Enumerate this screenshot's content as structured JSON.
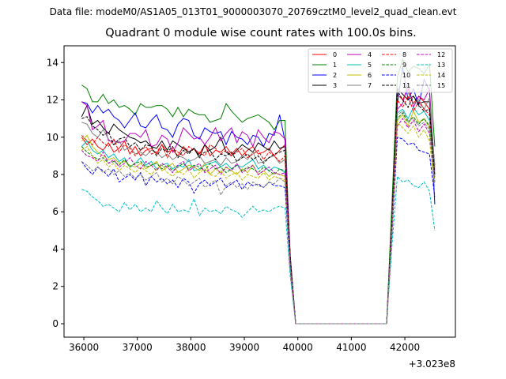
{
  "chart_data": {
    "type": "line",
    "suptitle": "Data file: modeM0/AS1A05_013T01_9000003070_20769cztM0_level2_quad_clean.evt",
    "title": "Quadrant 0 module wise count rates with 100.0s bins.",
    "xlabel": "",
    "ylabel": "",
    "x_offset_text": "+3.023e8",
    "xlim": [
      35630,
      42945
    ],
    "ylim": [
      -0.72,
      14.9
    ],
    "xticks": [
      36000,
      37000,
      38000,
      39000,
      40000,
      41000,
      42000
    ],
    "xtick_labels": [
      "36000",
      "37000",
      "38000",
      "39000",
      "40000",
      "41000",
      "42000"
    ],
    "yticks": [
      0,
      2,
      4,
      6,
      8,
      10,
      12,
      14
    ],
    "ytick_labels": [
      "0",
      "2",
      "4",
      "6",
      "8",
      "10",
      "12",
      "14"
    ],
    "grid": false,
    "legend_placement": "top-right",
    "legend_columns": 4,
    "x": [
      35960,
      36060,
      36160,
      36260,
      36360,
      36460,
      36560,
      36660,
      36760,
      36860,
      36960,
      37060,
      37160,
      37260,
      37360,
      37460,
      37560,
      37660,
      37760,
      37860,
      37960,
      38060,
      38160,
      38260,
      38360,
      38460,
      38560,
      38660,
      38760,
      38860,
      38960,
      39060,
      39160,
      39260,
      39360,
      39460,
      39560,
      39660,
      39760,
      39860,
      39960,
      40060,
      40160,
      40260,
      40360,
      40460,
      40560,
      40660,
      40760,
      40860,
      40960,
      41060,
      41160,
      41260,
      41360,
      41460,
      41560,
      41660,
      41760,
      41860,
      41960,
      42060,
      42160,
      42260,
      42360,
      42460,
      42560
    ],
    "series": [
      {
        "name": "0",
        "color": "#ff0000",
        "style": "solid",
        "values": [
          10.0,
          9.6,
          9.9,
          9.5,
          9.3,
          9.7,
          9.2,
          9.4,
          9.8,
          9.1,
          9.5,
          9.0,
          9.3,
          9.4,
          9.1,
          9.6,
          9.2,
          9.3,
          9.0,
          9.5,
          9.2,
          9.4,
          9.1,
          9.6,
          9.0,
          9.3,
          9.2,
          9.5,
          9.1,
          9.4,
          9.0,
          9.3,
          9.5,
          9.1,
          9.2,
          9.4,
          9.0,
          9.3,
          9.6,
          3.2,
          0,
          0,
          0,
          0,
          0,
          0,
          0,
          0,
          0,
          0,
          0,
          0,
          0,
          0,
          0,
          0,
          0,
          0,
          5.5,
          12.3,
          12.0,
          12.6,
          11.8,
          12.2,
          11.9,
          11.5,
          8.5
        ]
      },
      {
        "name": "1",
        "color": "#008000",
        "style": "solid",
        "values": [
          12.8,
          12.6,
          11.9,
          11.9,
          12.3,
          11.8,
          12.0,
          11.6,
          11.7,
          11.5,
          11.2,
          11.8,
          11.6,
          11.6,
          11.7,
          11.7,
          11.5,
          11.1,
          11.6,
          11.1,
          11.5,
          11.3,
          11.2,
          11.2,
          10.8,
          10.9,
          11.0,
          11.8,
          11.4,
          11.1,
          10.8,
          11.0,
          11.1,
          11.2,
          11.0,
          10.8,
          10.4,
          10.9,
          10.9,
          3.0,
          0,
          0,
          0,
          0,
          0,
          0,
          0,
          0,
          0,
          0,
          0,
          0,
          0,
          0,
          0,
          0,
          0,
          0,
          6.5,
          13.2,
          14.2,
          13.5,
          13.8,
          13.7,
          13.4,
          13.9,
          9.5
        ]
      },
      {
        "name": "2",
        "color": "#0000ff",
        "style": "solid",
        "values": [
          11.9,
          11.8,
          11.3,
          11.7,
          11.3,
          11.5,
          11.1,
          10.9,
          10.5,
          10.9,
          11.3,
          10.6,
          10.5,
          10.9,
          11.2,
          10.5,
          10.4,
          10.0,
          10.7,
          11.0,
          10.9,
          10.1,
          9.9,
          10.5,
          10.3,
          10.2,
          10.3,
          9.6,
          10.3,
          10.0,
          9.9,
          9.6,
          10.1,
          10.0,
          9.5,
          10.2,
          10.1,
          11.2,
          9.8,
          3.4,
          0,
          0,
          0,
          0,
          0,
          0,
          0,
          0,
          0,
          0,
          0,
          0,
          0,
          0,
          0,
          0,
          0,
          0,
          5.0,
          11.8,
          13.8,
          12.0,
          12.6,
          11.7,
          13.1,
          12.5,
          6.4
        ]
      },
      {
        "name": "3",
        "color": "#000000",
        "style": "solid",
        "values": [
          11.1,
          11.7,
          10.7,
          10.9,
          10.5,
          10.2,
          10.7,
          10.4,
          10.2,
          10.0,
          9.9,
          9.7,
          9.8,
          9.5,
          9.4,
          9.8,
          9.3,
          9.8,
          9.6,
          9.4,
          9.2,
          9.4,
          8.9,
          9.6,
          9.3,
          9.5,
          10.0,
          9.2,
          9.0,
          9.3,
          9.6,
          9.4,
          9.2,
          9.7,
          9.5,
          9.3,
          9.8,
          9.4,
          9.5,
          3.6,
          0,
          0,
          0,
          0,
          0,
          0,
          0,
          0,
          0,
          0,
          0,
          0,
          0,
          0,
          0,
          0,
          0,
          0,
          5.8,
          12.6,
          12.3,
          12.0,
          12.2,
          11.8,
          11.9,
          11.9,
          8.0
        ]
      },
      {
        "name": "4",
        "color": "#bf00bf",
        "style": "solid",
        "values": [
          11.9,
          11.7,
          10.4,
          10.6,
          10.9,
          9.8,
          9.8,
          9.7,
          9.8,
          10.2,
          10.2,
          10.0,
          10.4,
          9.5,
          9.6,
          10.1,
          9.9,
          9.2,
          9.7,
          10.5,
          10.2,
          9.9,
          10.0,
          9.6,
          10.0,
          10.5,
          9.8,
          10.2,
          10.5,
          9.7,
          10.3,
          10.1,
          9.5,
          10.4,
          10.0,
          9.7,
          10.3,
          10.2,
          9.9,
          3.5,
          0,
          0,
          0,
          0,
          0,
          0,
          0,
          0,
          0,
          0,
          0,
          0,
          0,
          0,
          0,
          0,
          0,
          0,
          5.3,
          11.5,
          11.8,
          12.9,
          11.6,
          12.2,
          12.0,
          12.6,
          8.2
        ]
      },
      {
        "name": "5",
        "color": "#00bfbf",
        "style": "solid",
        "values": [
          9.5,
          9.8,
          9.3,
          9.1,
          9.3,
          8.9,
          9.1,
          8.7,
          8.9,
          8.4,
          8.6,
          8.9,
          8.5,
          8.7,
          8.3,
          8.5,
          8.6,
          8.3,
          8.5,
          8.4,
          8.8,
          8.2,
          8.3,
          8.5,
          8.6,
          8.7,
          8.4,
          8.6,
          8.3,
          8.5,
          8.4,
          8.6,
          8.8,
          8.3,
          8.5,
          8.2,
          8.4,
          8.3,
          8.1,
          3.0,
          0,
          0,
          0,
          0,
          0,
          0,
          0,
          0,
          0,
          0,
          0,
          0,
          0,
          0,
          0,
          0,
          0,
          0,
          5.0,
          11.3,
          11.5,
          11.0,
          11.6,
          11.2,
          11.4,
          10.9,
          8.0
        ]
      },
      {
        "name": "6",
        "color": "#bfbf00",
        "style": "solid",
        "values": [
          9.8,
          10.1,
          9.5,
          9.2,
          9.0,
          8.8,
          8.9,
          8.6,
          8.7,
          8.5,
          8.4,
          8.6,
          8.3,
          8.5,
          8.7,
          8.2,
          8.4,
          8.6,
          8.1,
          8.3,
          8.5,
          8.4,
          8.2,
          8.6,
          8.0,
          8.3,
          8.1,
          8.4,
          8.2,
          8.0,
          8.3,
          8.1,
          8.5,
          8.0,
          8.2,
          7.9,
          8.1,
          8.0,
          7.9,
          3.1,
          0,
          0,
          0,
          0,
          0,
          0,
          0,
          0,
          0,
          0,
          0,
          0,
          0,
          0,
          0,
          0,
          0,
          0,
          5.0,
          10.9,
          11.2,
          10.6,
          11.4,
          10.8,
          11.0,
          10.5,
          7.8
        ]
      },
      {
        "name": "7",
        "color": "#808080",
        "style": "solid",
        "values": [
          10.8,
          10.7,
          10.2,
          10.0,
          10.4,
          9.9,
          9.6,
          9.8,
          9.3,
          9.5,
          9.1,
          9.2,
          9.0,
          9.3,
          9.2,
          8.9,
          9.1,
          8.8,
          9.0,
          8.9,
          8.7,
          8.8,
          9.0,
          8.6,
          8.7,
          8.8,
          8.5,
          8.9,
          8.6,
          8.7,
          9.0,
          8.8,
          9.2,
          8.6,
          8.7,
          8.9,
          9.0,
          8.6,
          8.8,
          3.4,
          0,
          0,
          0,
          0,
          0,
          0,
          0,
          0,
          0,
          0,
          0,
          0,
          0,
          0,
          0,
          0,
          0,
          0,
          5.8,
          12.2,
          13.6,
          12.4,
          11.8,
          12.0,
          11.5,
          12.1,
          8.4
        ]
      },
      {
        "name": "8",
        "color": "#ff0000",
        "style": "dashed",
        "values": [
          10.1,
          9.8,
          9.6,
          10.0,
          9.7,
          9.5,
          9.9,
          9.2,
          9.6,
          9.4,
          9.0,
          9.3,
          9.5,
          9.1,
          9.2,
          9.6,
          8.9,
          9.4,
          9.2,
          9.0,
          9.5,
          9.3,
          9.2,
          9.0,
          9.6,
          9.4,
          9.1,
          9.3,
          9.0,
          9.2,
          9.4,
          8.9,
          9.1,
          9.3,
          8.8,
          9.2,
          9.0,
          8.7,
          9.0,
          3.2,
          0,
          0,
          0,
          0,
          0,
          0,
          0,
          0,
          0,
          0,
          0,
          0,
          0,
          0,
          0,
          0,
          0,
          0,
          5.5,
          12.0,
          11.6,
          12.2,
          11.4,
          11.9,
          11.5,
          11.2,
          7.9
        ]
      },
      {
        "name": "9",
        "color": "#008000",
        "style": "dashed",
        "values": [
          9.5,
          9.2,
          9.0,
          8.8,
          8.9,
          8.6,
          8.7,
          8.5,
          8.8,
          8.4,
          8.6,
          8.7,
          8.4,
          8.5,
          8.6,
          8.3,
          8.5,
          8.2,
          8.4,
          8.6,
          8.3,
          8.5,
          8.4,
          8.2,
          8.6,
          8.3,
          8.4,
          8.1,
          8.3,
          8.5,
          8.2,
          8.4,
          8.3,
          8.1,
          8.4,
          8.2,
          8.0,
          8.3,
          8.2,
          3.0,
          0,
          0,
          0,
          0,
          0,
          0,
          0,
          0,
          0,
          0,
          0,
          0,
          0,
          0,
          0,
          0,
          0,
          0,
          5.2,
          11.0,
          11.3,
          10.8,
          11.1,
          10.7,
          11.0,
          10.6,
          7.6
        ]
      },
      {
        "name": "10",
        "color": "#0000ff",
        "style": "dashed",
        "values": [
          8.7,
          8.3,
          8.0,
          8.4,
          8.2,
          7.9,
          8.3,
          7.6,
          7.8,
          8.0,
          7.7,
          8.1,
          7.4,
          7.9,
          7.6,
          7.8,
          7.5,
          7.7,
          7.3,
          7.8,
          7.6,
          7.0,
          7.5,
          7.7,
          7.4,
          7.6,
          7.8,
          7.3,
          7.5,
          7.7,
          7.2,
          7.6,
          7.4,
          7.5,
          7.3,
          7.6,
          7.4,
          7.4,
          7.3,
          2.8,
          0,
          0,
          0,
          0,
          0,
          0,
          0,
          0,
          0,
          0,
          0,
          0,
          0,
          0,
          0,
          0,
          0,
          0,
          4.8,
          10.0,
          9.9,
          9.6,
          9.7,
          9.3,
          9.2,
          9.1,
          6.8
        ]
      },
      {
        "name": "11",
        "color": "#000000",
        "style": "dashed",
        "values": [
          11.0,
          11.1,
          10.6,
          10.4,
          10.1,
          10.3,
          9.6,
          9.9,
          10.0,
          9.5,
          9.7,
          9.3,
          9.6,
          9.5,
          9.0,
          9.4,
          9.2,
          9.5,
          8.9,
          9.3,
          9.1,
          9.4,
          9.0,
          9.2,
          9.3,
          8.8,
          9.1,
          9.0,
          9.2,
          8.7,
          8.9,
          9.1,
          8.8,
          9.0,
          8.6,
          8.9,
          9.1,
          9.2,
          9.3,
          3.5,
          0,
          0,
          0,
          0,
          0,
          0,
          0,
          0,
          0,
          0,
          0,
          0,
          0,
          0,
          0,
          0,
          0,
          0,
          5.7,
          12.5,
          12.0,
          11.6,
          12.2,
          11.7,
          11.4,
          11.5,
          7.9
        ]
      },
      {
        "name": "12",
        "color": "#bf00bf",
        "style": "dashed",
        "values": [
          9.3,
          9.0,
          8.9,
          8.7,
          9.2,
          8.6,
          8.8,
          8.4,
          8.6,
          8.9,
          8.5,
          8.3,
          8.7,
          8.5,
          8.2,
          8.6,
          8.4,
          8.1,
          8.5,
          8.7,
          8.2,
          8.4,
          8.6,
          8.1,
          8.3,
          8.5,
          8.0,
          8.4,
          8.2,
          8.6,
          8.1,
          8.3,
          8.5,
          8.0,
          8.2,
          8.4,
          8.1,
          8.0,
          8.1,
          3.0,
          0,
          0,
          0,
          0,
          0,
          0,
          0,
          0,
          0,
          0,
          0,
          0,
          0,
          0,
          0,
          0,
          0,
          0,
          5.0,
          10.6,
          11.0,
          10.5,
          10.9,
          10.3,
          10.7,
          10.2,
          7.5
        ]
      },
      {
        "name": "13",
        "color": "#00bfbf",
        "style": "dashed",
        "values": [
          7.2,
          7.1,
          6.8,
          6.6,
          6.3,
          6.4,
          6.2,
          6.0,
          6.5,
          6.1,
          6.4,
          6.0,
          6.2,
          6.0,
          6.6,
          6.2,
          5.9,
          6.4,
          6.0,
          6.1,
          6.0,
          6.7,
          5.8,
          6.2,
          6.0,
          6.1,
          5.9,
          6.3,
          6.1,
          6.0,
          5.7,
          6.0,
          6.3,
          6.0,
          6.1,
          6.0,
          6.2,
          6.3,
          6.2,
          2.5,
          0,
          0,
          0,
          0,
          0,
          0,
          0,
          0,
          0,
          0,
          0,
          0,
          0,
          0,
          0,
          0,
          0,
          0,
          4.2,
          7.9,
          7.6,
          7.7,
          7.4,
          7.3,
          7.6,
          7.1,
          5.0
        ]
      },
      {
        "name": "14",
        "color": "#bfbf00",
        "style": "dashed",
        "values": [
          9.3,
          9.5,
          9.0,
          8.6,
          8.8,
          8.4,
          8.6,
          8.2,
          8.5,
          8.3,
          8.1,
          8.4,
          8.2,
          8.0,
          8.3,
          8.5,
          8.1,
          7.9,
          8.2,
          8.0,
          8.3,
          7.8,
          8.1,
          8.3,
          8.0,
          7.9,
          8.2,
          7.8,
          8.0,
          8.1,
          7.7,
          8.0,
          7.9,
          7.8,
          8.1,
          7.7,
          7.9,
          7.8,
          7.7,
          2.9,
          0,
          0,
          0,
          0,
          0,
          0,
          0,
          0,
          0,
          0,
          0,
          0,
          0,
          0,
          0,
          0,
          0,
          0,
          5.0,
          10.8,
          10.5,
          10.2,
          10.6,
          10.0,
          10.4,
          9.8,
          7.3
        ]
      },
      {
        "name": "15",
        "color": "#808080",
        "style": "dashed",
        "values": [
          8.7,
          8.5,
          8.2,
          8.4,
          8.1,
          8.3,
          8.0,
          8.2,
          7.9,
          8.1,
          7.8,
          8.0,
          7.7,
          7.9,
          8.1,
          7.6,
          7.8,
          7.5,
          7.9,
          7.7,
          7.4,
          7.6,
          7.8,
          7.3,
          7.5,
          7.7,
          6.9,
          7.4,
          7.6,
          7.3,
          7.5,
          7.2,
          7.6,
          7.4,
          7.3,
          7.6,
          7.5,
          7.8,
          7.6,
          2.9,
          0,
          0,
          0,
          0,
          0,
          0,
          0,
          0,
          0,
          0,
          0,
          0,
          0,
          0,
          0,
          0,
          0,
          0,
          5.2,
          11.2,
          11.4,
          10.9,
          11.0,
          10.6,
          10.8,
          10.4,
          7.6
        ]
      }
    ]
  }
}
